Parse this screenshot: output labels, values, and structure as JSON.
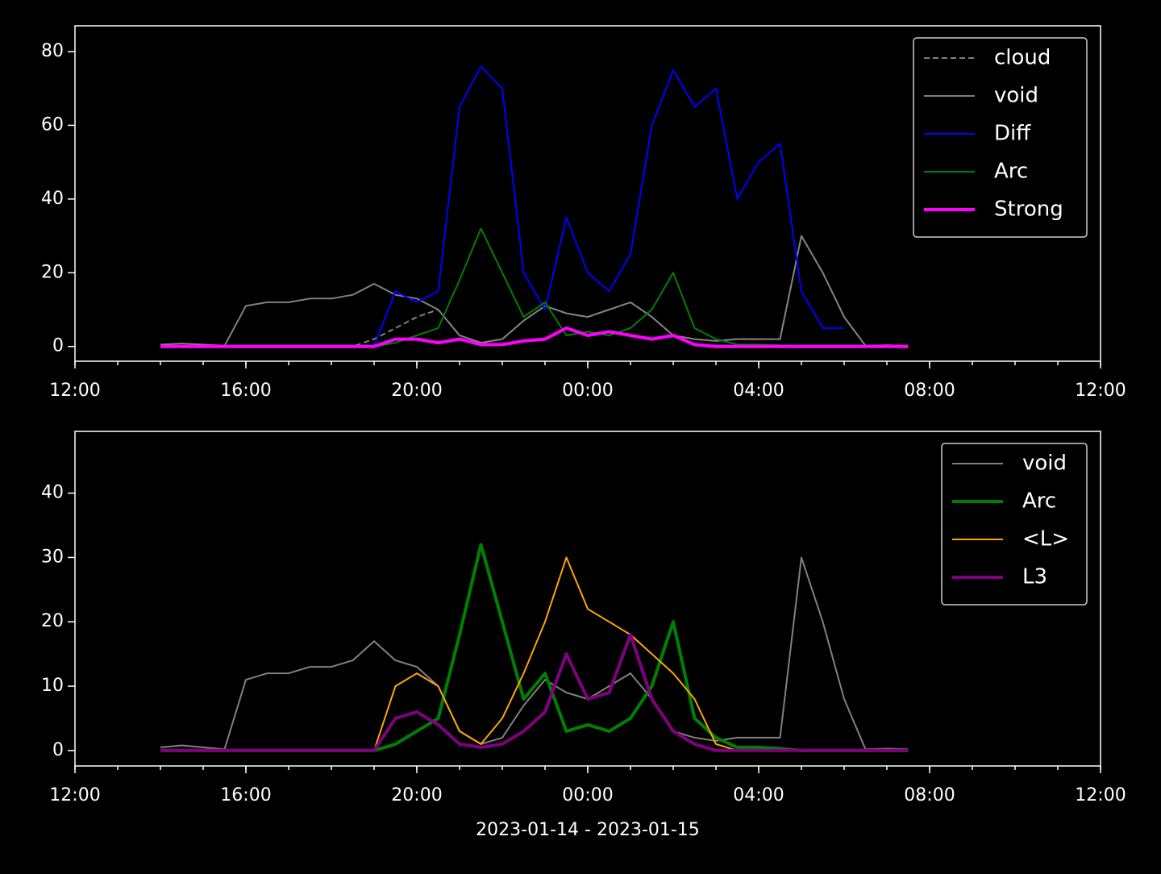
{
  "chart_data": [
    {
      "type": "line",
      "x": [
        "2023-01-14T14:00",
        "2023-01-14T14:30",
        "2023-01-14T15:00",
        "2023-01-14T15:30",
        "2023-01-14T16:00",
        "2023-01-14T16:30",
        "2023-01-14T17:00",
        "2023-01-14T17:30",
        "2023-01-14T18:00",
        "2023-01-14T18:30",
        "2023-01-14T19:00",
        "2023-01-14T19:30",
        "2023-01-14T20:00",
        "2023-01-14T20:30",
        "2023-01-14T21:00",
        "2023-01-14T21:30",
        "2023-01-14T22:00",
        "2023-01-14T22:30",
        "2023-01-14T23:00",
        "2023-01-14T23:30",
        "2023-01-15T00:00",
        "2023-01-15T00:30",
        "2023-01-15T01:00",
        "2023-01-15T01:30",
        "2023-01-15T02:00",
        "2023-01-15T02:30",
        "2023-01-15T03:00",
        "2023-01-15T03:30",
        "2023-01-15T04:00",
        "2023-01-15T04:30",
        "2023-01-15T05:00",
        "2023-01-15T05:30",
        "2023-01-15T06:00",
        "2023-01-15T06:30",
        "2023-01-15T07:00",
        "2023-01-15T07:30"
      ],
      "series": [
        {
          "name": "cloud",
          "color": "#808080",
          "dash": true,
          "width": 2,
          "values": [
            0,
            0,
            0,
            0,
            0,
            0,
            0,
            0,
            0,
            0,
            2,
            5,
            8,
            10,
            3,
            1,
            2,
            7,
            11,
            9,
            8,
            10,
            12,
            8,
            3,
            2,
            1.5,
            2,
            2,
            2,
            30,
            20,
            8,
            0.2,
            0.3,
            0.2
          ]
        },
        {
          "name": "void",
          "color": "#808080",
          "width": 2,
          "values": [
            0.5,
            0.8,
            0.5,
            0.2,
            11,
            12,
            12,
            13,
            13,
            14,
            17,
            14,
            13,
            10,
            3,
            1,
            2,
            7,
            11,
            9,
            8,
            10,
            12,
            8,
            3,
            2,
            1.5,
            2,
            2,
            2,
            30,
            20,
            8,
            0.2,
            0.3,
            0.2
          ]
        },
        {
          "name": "Diff",
          "color": "#0000ff",
          "width": 2,
          "values": [
            null,
            null,
            null,
            null,
            null,
            null,
            null,
            null,
            null,
            null,
            0,
            15,
            12,
            15,
            65,
            76,
            70,
            20,
            10,
            35,
            20,
            15,
            25,
            60,
            75,
            65,
            70,
            40,
            50,
            55,
            15,
            5,
            5,
            null,
            null,
            null
          ]
        },
        {
          "name": "Arc",
          "color": "#008000",
          "width": 2,
          "values": [
            0,
            0,
            0,
            0,
            0,
            0,
            0,
            0,
            0,
            0,
            0,
            1,
            3,
            5,
            18,
            32,
            20,
            8,
            12,
            3,
            4,
            3,
            5,
            10,
            20,
            5,
            2,
            0.5,
            0.5,
            0.3,
            0,
            0,
            0,
            0,
            0,
            0
          ]
        },
        {
          "name": "Strong",
          "color": "#ff00ff",
          "width": 4,
          "values": [
            0,
            0,
            0,
            0,
            0,
            0,
            0,
            0,
            0,
            0,
            0,
            2,
            2,
            1,
            2,
            0.5,
            0.5,
            1.5,
            2,
            5,
            3,
            4,
            3,
            2,
            3,
            0.5,
            0,
            0,
            0,
            0,
            0,
            0,
            0,
            0,
            0,
            0
          ]
        }
      ],
      "xlim": [
        "2023-01-14T12:00",
        "2023-01-15T12:00"
      ],
      "xticks": [
        {
          "value": "2023-01-14T12:00",
          "label": "12:00"
        },
        {
          "value": "2023-01-14T16:00",
          "label": "16:00"
        },
        {
          "value": "2023-01-14T20:00",
          "label": "20:00"
        },
        {
          "value": "2023-01-15T00:00",
          "label": "00:00"
        },
        {
          "value": "2023-01-15T04:00",
          "label": "04:00"
        },
        {
          "value": "2023-01-15T08:00",
          "label": "08:00"
        },
        {
          "value": "2023-01-15T12:00",
          "label": "12:00"
        }
      ],
      "ylim": [
        -4,
        87
      ],
      "yticks": [
        0,
        20,
        40,
        60,
        80
      ],
      "legend": "upper right"
    },
    {
      "type": "line",
      "x": [
        "2023-01-14T14:00",
        "2023-01-14T14:30",
        "2023-01-14T15:00",
        "2023-01-14T15:30",
        "2023-01-14T16:00",
        "2023-01-14T16:30",
        "2023-01-14T17:00",
        "2023-01-14T17:30",
        "2023-01-14T18:00",
        "2023-01-14T18:30",
        "2023-01-14T19:00",
        "2023-01-14T19:30",
        "2023-01-14T20:00",
        "2023-01-14T20:30",
        "2023-01-14T21:00",
        "2023-01-14T21:30",
        "2023-01-14T22:00",
        "2023-01-14T22:30",
        "2023-01-14T23:00",
        "2023-01-14T23:30",
        "2023-01-15T00:00",
        "2023-01-15T00:30",
        "2023-01-15T01:00",
        "2023-01-15T01:30",
        "2023-01-15T02:00",
        "2023-01-15T02:30",
        "2023-01-15T03:00",
        "2023-01-15T03:30",
        "2023-01-15T04:00",
        "2023-01-15T04:30",
        "2023-01-15T05:00",
        "2023-01-15T05:30",
        "2023-01-15T06:00",
        "2023-01-15T06:30",
        "2023-01-15T07:00",
        "2023-01-15T07:30"
      ],
      "series": [
        {
          "name": "void",
          "color": "#808080",
          "width": 2,
          "values": [
            0.5,
            0.8,
            0.5,
            0.2,
            11,
            12,
            12,
            13,
            13,
            14,
            17,
            14,
            13,
            10,
            3,
            1,
            2,
            7,
            11,
            9,
            8,
            10,
            12,
            8,
            3,
            2,
            1.5,
            2,
            2,
            2,
            30,
            20,
            8,
            0.2,
            0.3,
            0.2
          ]
        },
        {
          "name": "Arc",
          "color": "#008000",
          "width": 4,
          "values": [
            0,
            0,
            0,
            0,
            0,
            0,
            0,
            0,
            0,
            0,
            0,
            1,
            3,
            5,
            18,
            32,
            20,
            8,
            12,
            3,
            4,
            3,
            5,
            10,
            20,
            5,
            2,
            0.5,
            0.5,
            0.3,
            0,
            0,
            0,
            0,
            0,
            0
          ]
        },
        {
          "name": "<L>",
          "color": "#ffa500",
          "width": 2,
          "values": [
            0,
            0,
            0,
            0,
            0,
            0,
            0,
            0,
            0,
            0,
            0,
            10,
            12,
            10,
            3,
            1,
            5,
            12,
            20,
            30,
            22,
            20,
            18,
            15,
            12,
            8,
            1,
            0,
            0,
            0,
            0,
            0,
            0,
            0,
            0,
            0
          ]
        },
        {
          "name": "L3",
          "color": "#800080",
          "width": 4,
          "values": [
            0,
            0,
            0,
            0,
            0,
            0,
            0,
            0,
            0,
            0,
            0,
            5,
            6,
            4,
            1,
            0.5,
            1,
            3,
            6,
            15,
            8,
            9,
            18,
            8,
            3,
            1,
            0,
            0,
            0,
            0,
            0,
            0,
            0,
            0,
            0,
            0
          ]
        }
      ],
      "xlim": [
        "2023-01-14T12:00",
        "2023-01-15T12:00"
      ],
      "xticks": [
        {
          "value": "2023-01-14T12:00",
          "label": "12:00"
        },
        {
          "value": "2023-01-14T16:00",
          "label": "16:00"
        },
        {
          "value": "2023-01-14T20:00",
          "label": "20:00"
        },
        {
          "value": "2023-01-15T00:00",
          "label": "00:00"
        },
        {
          "value": "2023-01-15T04:00",
          "label": "04:00"
        },
        {
          "value": "2023-01-15T08:00",
          "label": "08:00"
        },
        {
          "value": "2023-01-15T12:00",
          "label": "12:00"
        }
      ],
      "xlabel": "2023-01-14 - 2023-01-15",
      "ylim": [
        -2.4,
        49.6
      ],
      "yticks": [
        0,
        10,
        20,
        30,
        40
      ],
      "legend": "upper right"
    }
  ]
}
